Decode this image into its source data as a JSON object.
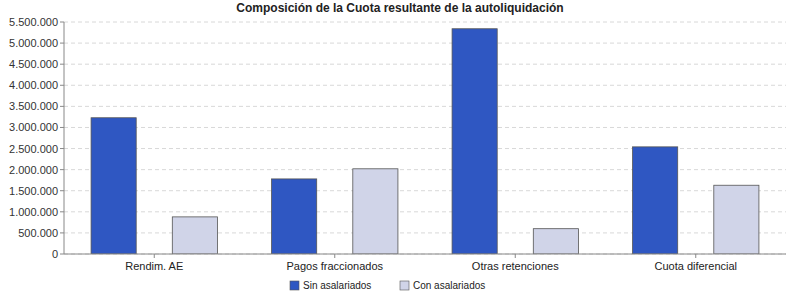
{
  "chart_data": {
    "type": "bar",
    "title": "Composición de la Cuota resultante de la autoliquidación",
    "categories": [
      "Rendim. AE",
      "Pagos fraccionados",
      "Otras retenciones",
      "Cuota diferencial"
    ],
    "series": [
      {
        "name": "Sin asalariados",
        "color": "#2f57c2",
        "values": [
          3230000,
          1780000,
          5340000,
          2540000
        ]
      },
      {
        "name": "Con asalariados",
        "color": "#d0d4e8",
        "values": [
          880000,
          2020000,
          600000,
          1630000
        ]
      }
    ],
    "ylim": [
      0,
      5500000
    ],
    "yticks": [
      0,
      {
        "value": 500000,
        "label": "500.000"
      },
      {
        "value": 1000000,
        "label": "1.000.000"
      },
      {
        "value": 1500000,
        "label": "1.500.000"
      },
      {
        "value": 2000000,
        "label": "2.000.000"
      },
      {
        "value": 2500000,
        "label": "2.500.000"
      },
      {
        "value": 3000000,
        "label": "3.000.000"
      },
      {
        "value": 3500000,
        "label": "3.500.000"
      },
      {
        "value": 4000000,
        "label": "4.000.000"
      },
      {
        "value": 4500000,
        "label": "4.500.000"
      },
      {
        "value": 5000000,
        "label": "5.000.000"
      },
      {
        "value": 5500000,
        "label": "5.500.000"
      }
    ],
    "grid": true,
    "legend": "bottom"
  }
}
